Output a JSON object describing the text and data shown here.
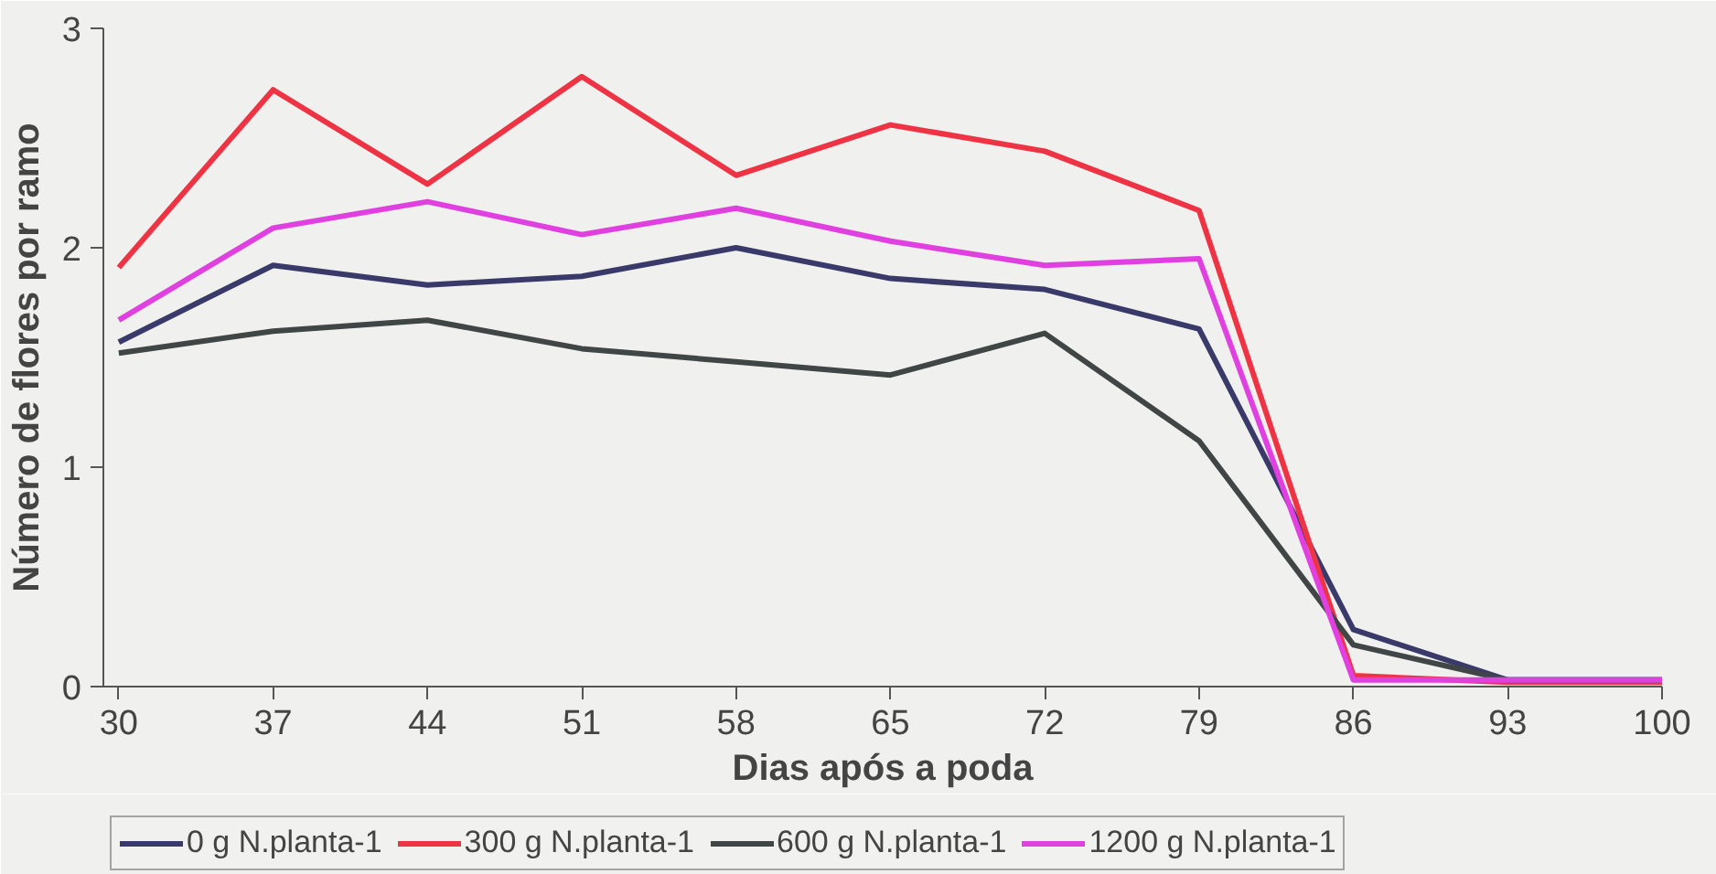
{
  "chart_data": {
    "type": "line",
    "xlabel": "Dias após a poda",
    "ylabel": "Número de flores por ramo",
    "x": [
      30,
      37,
      44,
      51,
      58,
      65,
      72,
      79,
      86,
      93,
      100
    ],
    "xlim": [
      29.3,
      100
    ],
    "xticks": [
      30,
      37,
      44,
      51,
      58,
      65,
      72,
      79,
      86,
      93,
      100
    ],
    "ylim": [
      0,
      3
    ],
    "yticks": [
      0,
      1,
      2,
      3
    ],
    "grid": false,
    "legend": "bottom",
    "marker": "none",
    "line_style": "solid",
    "series": [
      {
        "name": "0 g N.planta-1",
        "color": "#3a3a6a",
        "values": [
          1.57,
          1.92,
          1.83,
          1.87,
          2.0,
          1.86,
          1.81,
          1.63,
          0.26,
          0.03,
          0.03
        ]
      },
      {
        "name": "300 g N.planta-1",
        "color": "#ee3344",
        "values": [
          1.91,
          2.72,
          2.29,
          2.78,
          2.33,
          2.56,
          2.44,
          2.17,
          0.05,
          0.02,
          0.02
        ]
      },
      {
        "name": "600 g N.planta-1",
        "color": "#404545",
        "values": [
          1.52,
          1.62,
          1.67,
          1.54,
          1.48,
          1.42,
          1.61,
          1.12,
          0.19,
          0.03,
          0.03
        ]
      },
      {
        "name": "1200 g N.planta-1",
        "color": "#e040e0",
        "values": [
          1.67,
          2.09,
          2.21,
          2.06,
          2.18,
          2.03,
          1.92,
          1.95,
          0.03,
          0.03,
          0.03
        ]
      }
    ]
  }
}
